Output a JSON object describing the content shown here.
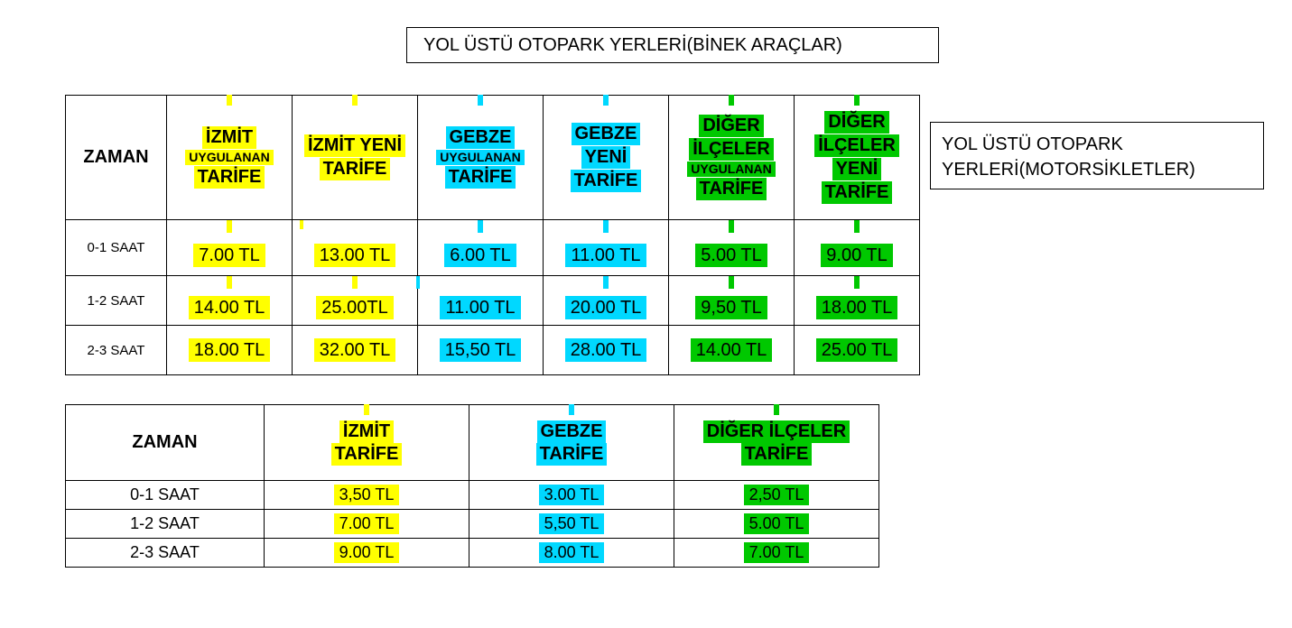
{
  "colors": {
    "yellow": "#ffff00",
    "cyan": "#00d8ff",
    "green": "#00c800",
    "border": "#000000",
    "bg": "#ffffff",
    "text": "#000000"
  },
  "title_box": "YOL ÜSTÜ OTOPARK YERLERİ(BİNEK ARAÇLAR)",
  "side_box": "YOL ÜSTÜ OTOPARK YERLERİ(MOTORSİKLETLER)",
  "table1": {
    "zaman_label": "ZAMAN",
    "columns": [
      {
        "id": "izmit-uygulanan",
        "color": "yellow",
        "lines": [
          "İZMİT",
          "UYGULANAN",
          "TARİFE"
        ],
        "small_idx": 1
      },
      {
        "id": "izmit-yeni",
        "color": "yellow",
        "lines": [
          "İZMİT YENİ",
          "TARİFE"
        ]
      },
      {
        "id": "gebze-uygulanan",
        "color": "cyan",
        "lines": [
          "GEBZE",
          "UYGULANAN",
          "TARİFE"
        ],
        "small_idx": 1
      },
      {
        "id": "gebze-yeni",
        "color": "cyan",
        "lines": [
          "GEBZE",
          "YENİ",
          "TARİFE"
        ]
      },
      {
        "id": "diger-uygulanan",
        "color": "green",
        "lines": [
          "DİĞER",
          "İLÇELER",
          "UYGULANAN",
          "TARİFE"
        ],
        "small_idx": 2
      },
      {
        "id": "diger-yeni",
        "color": "green",
        "lines": [
          "DİĞER",
          "İLÇELER",
          "YENİ",
          "TARİFE"
        ]
      }
    ],
    "rows": [
      {
        "label": "0-1 SAAT",
        "values": [
          "7.00 TL",
          "13.00 TL",
          "6.00 TL",
          "11.00 TL",
          "5.00 TL",
          "9.00 TL"
        ]
      },
      {
        "label": "1-2 SAAT",
        "values": [
          "14.00 TL",
          "25.00TL",
          "11.00 TL",
          "20.00 TL",
          "9,50 TL",
          "18.00 TL"
        ]
      },
      {
        "label": "2-3 SAAT",
        "values": [
          "18.00 TL",
          "32.00 TL",
          "15,50 TL",
          "28.00 TL",
          "14.00 TL",
          "25.00 TL"
        ]
      }
    ],
    "row_has_tick": [
      true,
      true,
      false
    ]
  },
  "table2": {
    "zaman_label": "ZAMAN",
    "columns": [
      {
        "id": "izmit-tarife",
        "color": "yellow",
        "lines": [
          "İZMİT",
          "TARİFE"
        ]
      },
      {
        "id": "gebze-tarife",
        "color": "cyan",
        "lines": [
          "GEBZE",
          "TARİFE"
        ]
      },
      {
        "id": "diger-tarife",
        "color": "green",
        "lines": [
          "DİĞER İLÇELER",
          "TARİFE"
        ]
      }
    ],
    "rows": [
      {
        "label": "0-1 SAAT",
        "values": [
          "3,50 TL",
          "3.00 TL",
          "2,50 TL"
        ]
      },
      {
        "label": "1-2 SAAT",
        "values": [
          "7.00 TL",
          "5,50 TL",
          "5.00 TL"
        ]
      },
      {
        "label": "2-3 SAAT",
        "values": [
          "9.00 TL",
          "8.00 TL",
          "7.00 TL"
        ]
      }
    ]
  },
  "fonts": {
    "title": 20,
    "header_big": 20,
    "header_small": 14,
    "price_t1": 20,
    "time_t1": 15,
    "price_t2": 18,
    "time_t2": 18
  }
}
